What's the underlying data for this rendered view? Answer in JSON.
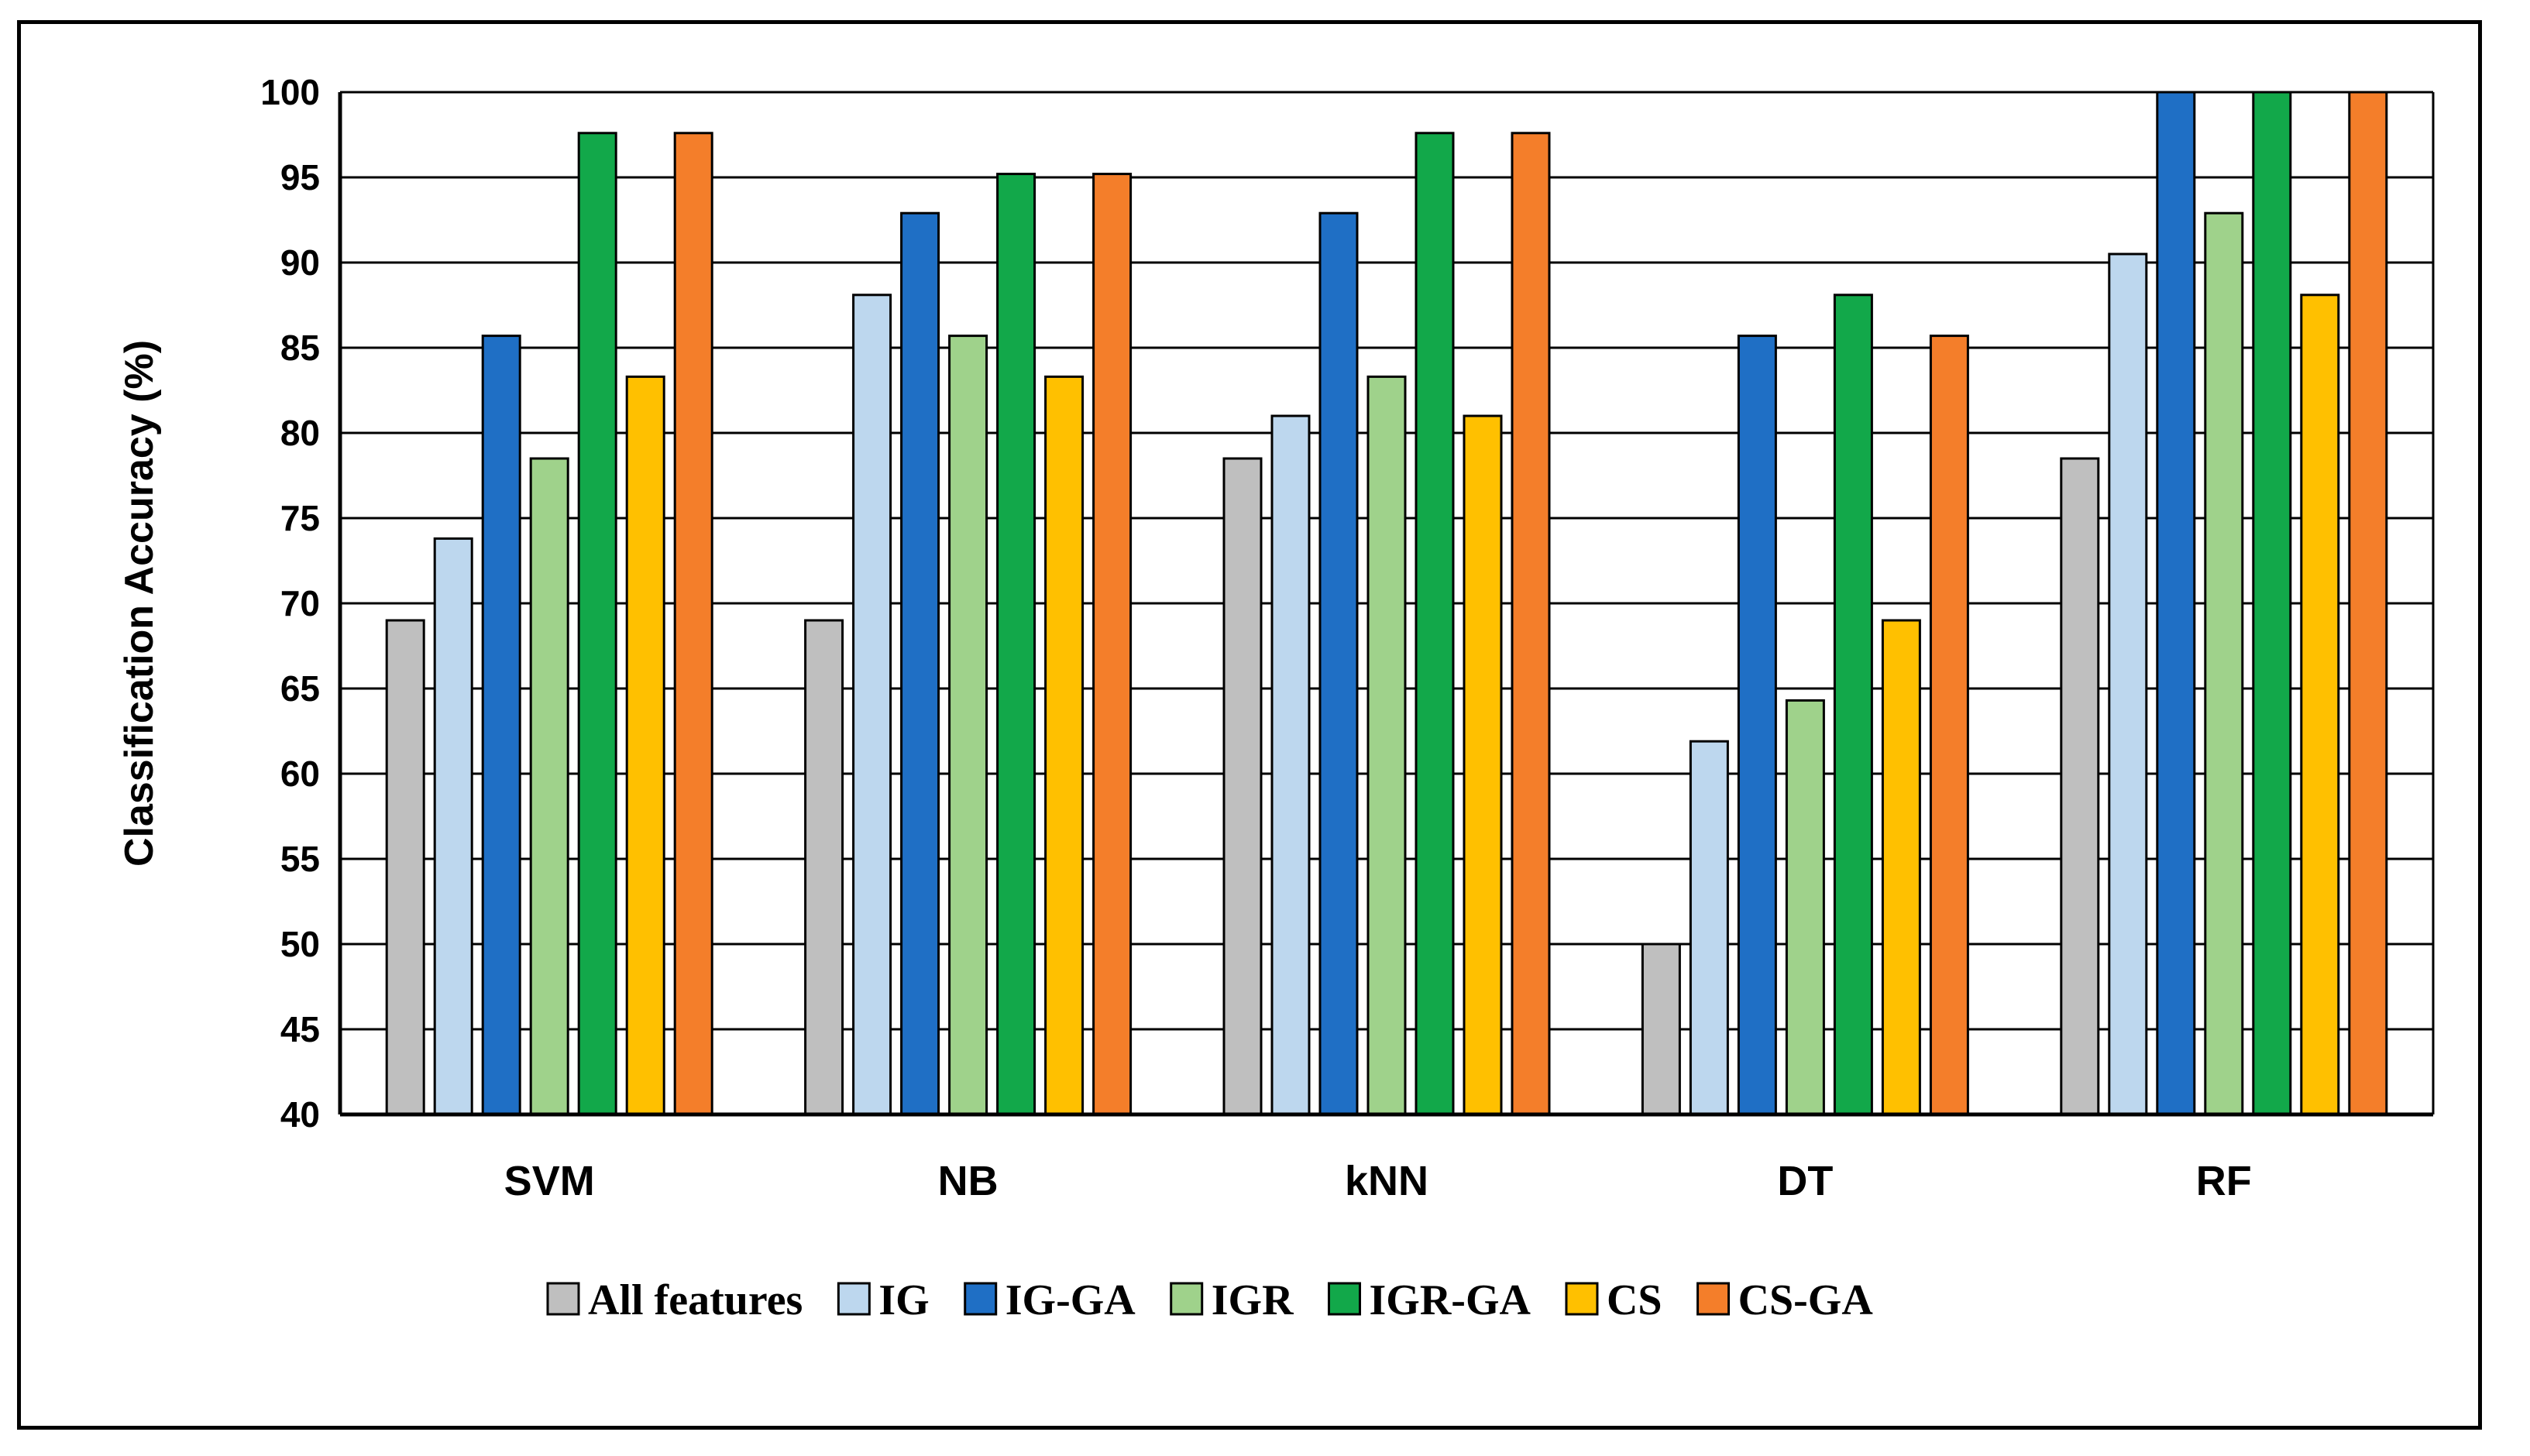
{
  "chart_data": {
    "type": "bar",
    "title": "",
    "xlabel": "",
    "ylabel": "Classification Accuracy (%)",
    "ylim": [
      40,
      100
    ],
    "ytick_step": 5,
    "grid": true,
    "legend_position": "bottom",
    "categories": [
      "SVM",
      "NB",
      "kNN",
      "DT",
      "RF"
    ],
    "series": [
      {
        "name": "All features",
        "color": "#bfbfbf",
        "values": [
          69.0,
          69.0,
          78.5,
          50.0,
          78.5
        ]
      },
      {
        "name": "IG",
        "color": "#bdd7ee",
        "values": [
          73.8,
          88.1,
          81.0,
          61.9,
          90.5
        ]
      },
      {
        "name": "IG-GA",
        "color": "#1f6fc5",
        "values": [
          85.7,
          92.9,
          92.9,
          85.7,
          100
        ]
      },
      {
        "name": "IGR",
        "color": "#9fd28b",
        "values": [
          78.5,
          85.7,
          83.3,
          64.3,
          92.9
        ]
      },
      {
        "name": "IGR-GA",
        "color": "#12a84a",
        "values": [
          97.6,
          95.2,
          97.6,
          88.1,
          100
        ]
      },
      {
        "name": "CS",
        "color": "#ffc000",
        "values": [
          83.3,
          83.3,
          81.0,
          69.0,
          88.1
        ]
      },
      {
        "name": "CS-GA",
        "color": "#f47e2a",
        "values": [
          97.6,
          95.2,
          97.6,
          85.7,
          100
        ]
      }
    ]
  }
}
